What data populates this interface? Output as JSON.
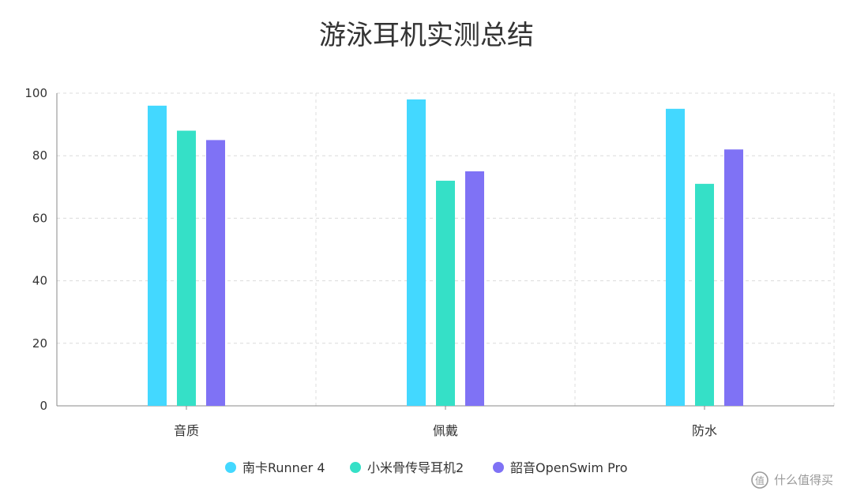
{
  "chart_data": {
    "type": "bar",
    "title": "游泳耳机实测总结",
    "xlabel": "",
    "ylabel": "",
    "categories": [
      "音质",
      "佩戴",
      "防水"
    ],
    "ylim": [
      0,
      100
    ],
    "yticks": [
      0,
      20,
      40,
      60,
      80,
      100
    ],
    "grid": true,
    "legend_position": "bottom",
    "series": [
      {
        "name": "南卡Runner 4",
        "color": "#43d8ff",
        "values": [
          96,
          98,
          95
        ]
      },
      {
        "name": "小米骨传导耳机2",
        "color": "#35e0c7",
        "values": [
          88,
          72,
          71
        ]
      },
      {
        "name": "韶音OpenSwim Pro",
        "color": "#7f72f5",
        "values": [
          85,
          75,
          82
        ]
      }
    ]
  },
  "watermark": {
    "text": "什么值得买",
    "icon": "zdm-logo-icon"
  }
}
